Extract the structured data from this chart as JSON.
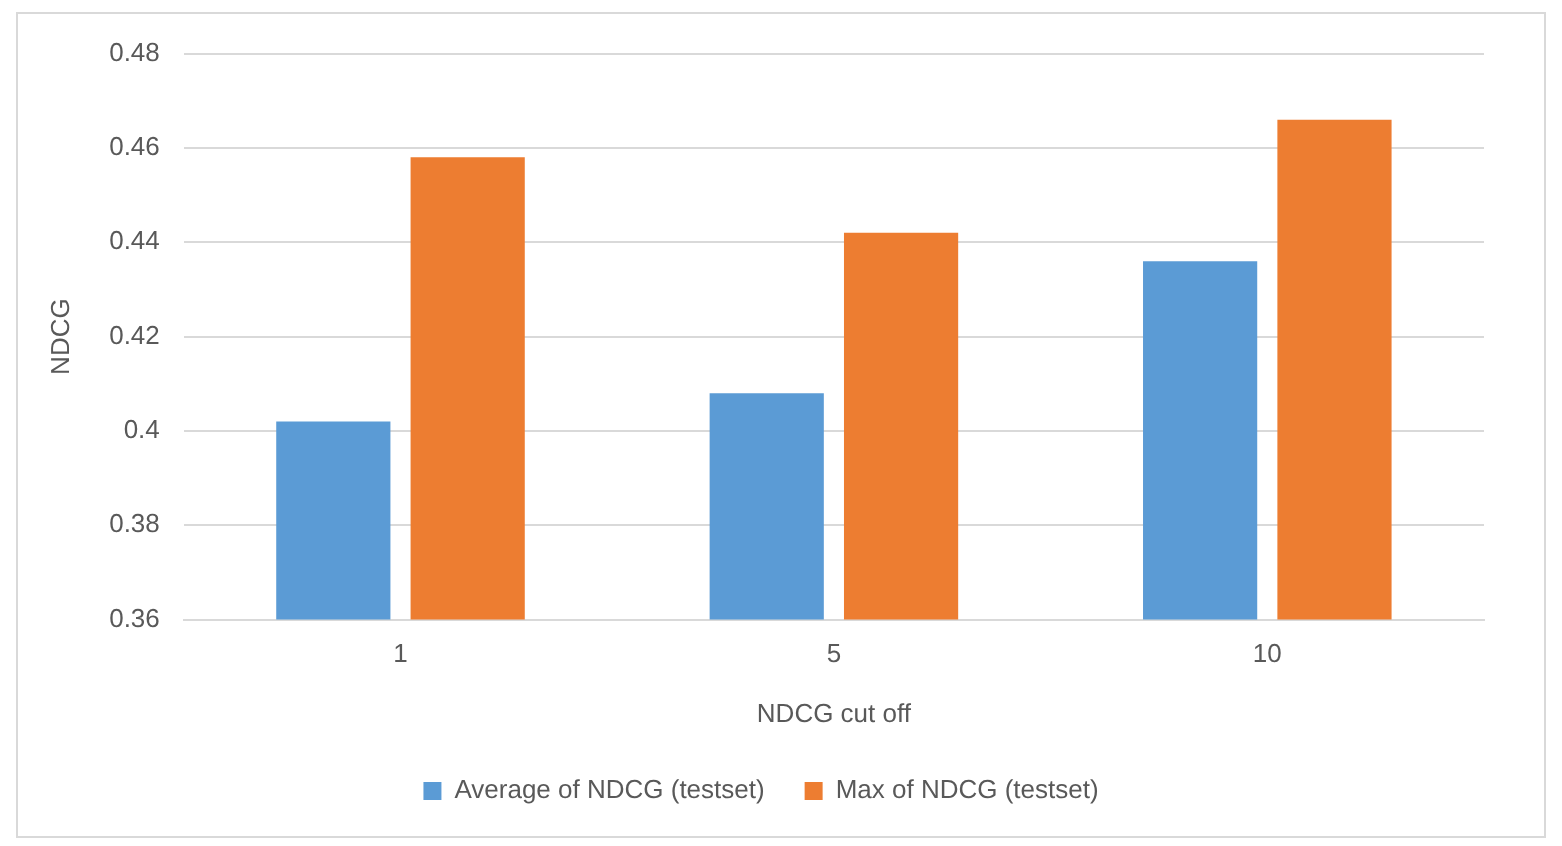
{
  "chart_data": {
    "type": "bar",
    "xlabel": "NDCG cut off",
    "ylabel": "NDCG",
    "categories": [
      "1",
      "5",
      "10"
    ],
    "series": [
      {
        "name": "Average of NDCG (testset)",
        "color": "#5b9bd5",
        "values": [
          0.402,
          0.408,
          0.436
        ]
      },
      {
        "name": "Max of NDCG (testset)",
        "color": "#ed7d31",
        "values": [
          0.458,
          0.442,
          0.466
        ]
      }
    ],
    "ylim": [
      0.36,
      0.48
    ],
    "yticks": [
      0.36,
      0.38,
      0.4,
      0.42,
      0.44,
      0.46,
      0.48
    ],
    "grid": "y",
    "legend": "bottom"
  }
}
